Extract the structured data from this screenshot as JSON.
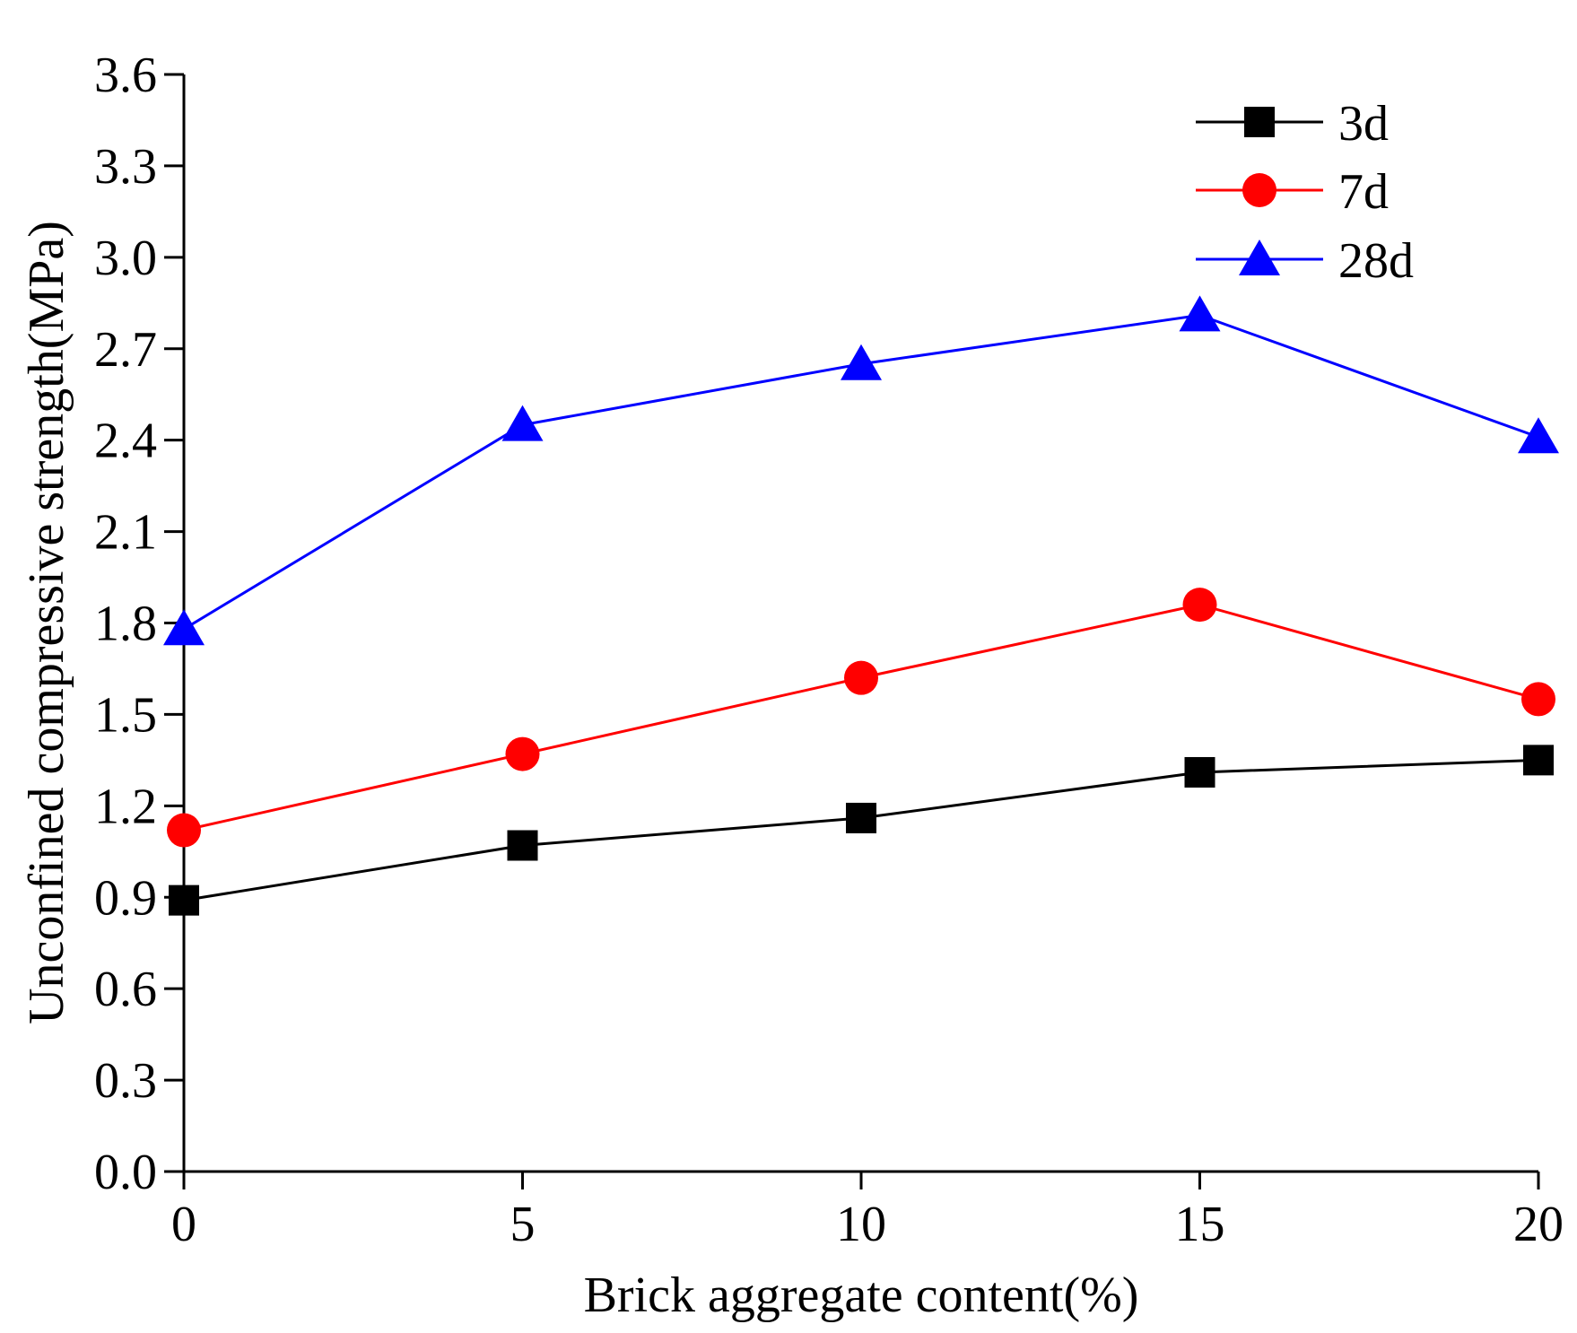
{
  "chart_data": {
    "type": "line",
    "title": "",
    "xlabel": "Brick aggregate content(%)",
    "ylabel": "Unconfined compressive strength(MPa)",
    "xlim": [
      0,
      20
    ],
    "ylim": [
      0.0,
      3.6
    ],
    "x": [
      0,
      5,
      10,
      15,
      20
    ],
    "xticks": [
      "0",
      "5",
      "10",
      "15",
      "20"
    ],
    "yticks": [
      "0.0",
      "0.3",
      "0.6",
      "0.9",
      "1.2",
      "1.5",
      "1.8",
      "2.1",
      "2.4",
      "2.7",
      "3.0",
      "3.3",
      "3.6"
    ],
    "grid": false,
    "legend_position": "top-right",
    "series": [
      {
        "name": "3d",
        "color": "#000000",
        "marker": "square",
        "values": [
          0.89,
          1.07,
          1.16,
          1.31,
          1.35
        ]
      },
      {
        "name": "7d",
        "color": "#ff0000",
        "marker": "circle",
        "values": [
          1.12,
          1.37,
          1.62,
          1.86,
          1.55
        ]
      },
      {
        "name": "28d",
        "color": "#0000ff",
        "marker": "triangle",
        "values": [
          1.78,
          2.45,
          2.65,
          2.81,
          2.41
        ]
      }
    ]
  }
}
